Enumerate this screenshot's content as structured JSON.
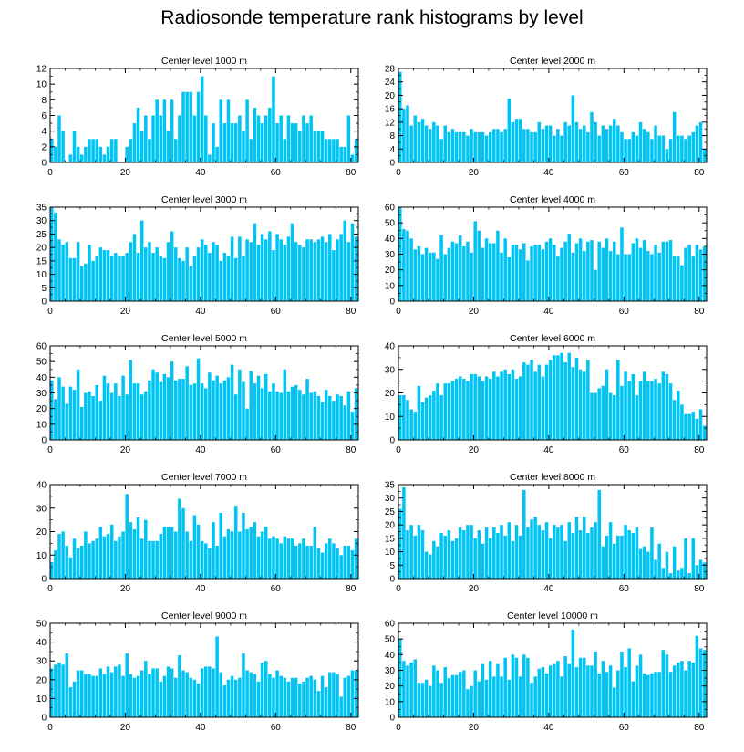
{
  "title": "Radiosonde temperature rank histograms by level",
  "colors": {
    "bar": "#00c4f4",
    "bar_edge": "#ffffff",
    "axis": "#000000"
  },
  "chart_data": [
    {
      "type": "bar",
      "title": "Center level 1000 m",
      "xlim": [
        0,
        82
      ],
      "ylim": [
        0,
        12
      ],
      "xticks": [
        0,
        20,
        40,
        60,
        80
      ],
      "yticks": [
        0,
        2,
        4,
        6,
        8,
        10,
        12
      ],
      "values": [
        3,
        2,
        6,
        4,
        0,
        1,
        4,
        2,
        1,
        2,
        3,
        3,
        3,
        2,
        1,
        2,
        3,
        3,
        0,
        0,
        2,
        3,
        5,
        7,
        4,
        6,
        3,
        6,
        8,
        6,
        8,
        4,
        8,
        3,
        6,
        9,
        9,
        9,
        6,
        9,
        11,
        6,
        1,
        5,
        2,
        8,
        5,
        8,
        5,
        5,
        6,
        4,
        8,
        3,
        7,
        6,
        5,
        6,
        7,
        11,
        5,
        6,
        3,
        6,
        5,
        5,
        4,
        6,
        5,
        6,
        4,
        4,
        4,
        3,
        3,
        3,
        3,
        2,
        2,
        6,
        1,
        3
      ]
    },
    {
      "type": "bar",
      "title": "Center level 2000 m",
      "xlim": [
        0,
        82
      ],
      "ylim": [
        0,
        28
      ],
      "xticks": [
        0,
        20,
        40,
        60,
        80
      ],
      "yticks": [
        0,
        4,
        8,
        12,
        16,
        20,
        24,
        28
      ],
      "values": [
        27,
        16,
        17,
        11,
        14,
        12,
        13,
        11,
        10,
        12,
        11,
        7,
        11,
        9,
        10,
        9,
        9,
        9,
        8,
        10,
        9,
        9,
        9,
        8,
        9,
        10,
        10,
        9,
        10,
        19,
        12,
        13,
        13,
        10,
        10,
        9,
        9,
        12,
        10,
        11,
        11,
        8,
        10,
        8,
        12,
        11,
        20,
        12,
        10,
        11,
        9,
        15,
        12,
        8,
        11,
        10,
        11,
        13,
        11,
        9,
        7,
        7,
        9,
        8,
        12,
        10,
        9,
        7,
        11,
        8,
        8,
        4,
        7,
        15,
        8,
        8,
        7,
        8,
        9,
        11,
        12,
        4
      ]
    },
    {
      "type": "bar",
      "title": "Center level 3000 m",
      "xlim": [
        0,
        82
      ],
      "ylim": [
        0,
        35
      ],
      "xticks": [
        0,
        20,
        40,
        60,
        80
      ],
      "yticks": [
        0,
        5,
        10,
        15,
        20,
        25,
        30,
        35
      ],
      "values": [
        35,
        33,
        23,
        21,
        22,
        16,
        16,
        22,
        13,
        14,
        21,
        15,
        17,
        20,
        19,
        19,
        17,
        18,
        17,
        17,
        18,
        22,
        25,
        18,
        30,
        20,
        22,
        18,
        20,
        17,
        16,
        22,
        26,
        20,
        16,
        15,
        20,
        13,
        17,
        20,
        23,
        21,
        18,
        22,
        21,
        15,
        18,
        17,
        24,
        16,
        24,
        17,
        23,
        22,
        29,
        21,
        25,
        23,
        26,
        19,
        25,
        23,
        21,
        24,
        29,
        22,
        21,
        20,
        23,
        23,
        22,
        23,
        24,
        22,
        25,
        19,
        23,
        25,
        30,
        22,
        29,
        24
      ]
    },
    {
      "type": "bar",
      "title": "Center level 4000 m",
      "xlim": [
        0,
        82
      ],
      "ylim": [
        0,
        60
      ],
      "xticks": [
        0,
        20,
        40,
        60,
        80
      ],
      "yticks": [
        0,
        10,
        20,
        30,
        40,
        50,
        60
      ],
      "values": [
        60,
        46,
        45,
        40,
        33,
        35,
        30,
        34,
        31,
        31,
        27,
        42,
        30,
        34,
        38,
        37,
        42,
        35,
        38,
        31,
        51,
        45,
        34,
        40,
        37,
        37,
        45,
        31,
        40,
        28,
        36,
        36,
        33,
        37,
        26,
        35,
        36,
        36,
        33,
        38,
        40,
        36,
        29,
        34,
        38,
        43,
        31,
        37,
        40,
        32,
        38,
        39,
        20,
        38,
        34,
        40,
        32,
        38,
        30,
        47,
        30,
        30,
        37,
        40,
        34,
        39,
        32,
        30,
        36,
        31,
        38,
        38,
        39,
        29,
        29,
        23,
        34,
        36,
        29,
        36,
        33,
        35
      ]
    },
    {
      "type": "bar",
      "title": "Center level 5000 m",
      "xlim": [
        0,
        82
      ],
      "ylim": [
        0,
        60
      ],
      "xticks": [
        0,
        20,
        40,
        60,
        80
      ],
      "yticks": [
        0,
        10,
        20,
        30,
        40,
        50,
        60
      ],
      "values": [
        38,
        26,
        40,
        34,
        23,
        34,
        32,
        45,
        21,
        30,
        31,
        28,
        35,
        25,
        41,
        36,
        30,
        36,
        28,
        41,
        29,
        51,
        36,
        36,
        29,
        31,
        38,
        45,
        43,
        37,
        42,
        40,
        50,
        38,
        39,
        39,
        47,
        35,
        36,
        52,
        36,
        33,
        43,
        38,
        41,
        36,
        38,
        40,
        48,
        29,
        45,
        37,
        20,
        44,
        36,
        41,
        33,
        42,
        31,
        36,
        31,
        30,
        45,
        31,
        34,
        35,
        32,
        29,
        39,
        30,
        31,
        28,
        24,
        32,
        28,
        25,
        29,
        28,
        22,
        31,
        18,
        33
      ]
    },
    {
      "type": "bar",
      "title": "Center level 6000 m",
      "xlim": [
        0,
        82
      ],
      "ylim": [
        0,
        40
      ],
      "xticks": [
        0,
        20,
        40,
        60,
        80
      ],
      "yticks": [
        0,
        10,
        20,
        30,
        40
      ],
      "values": [
        19,
        19,
        17,
        13,
        12,
        23,
        16,
        18,
        19,
        21,
        24,
        19,
        24,
        24,
        25,
        26,
        27,
        26,
        25,
        28,
        28,
        27,
        25,
        27,
        26,
        29,
        27,
        29,
        30,
        28,
        30,
        26,
        27,
        33,
        32,
        34,
        29,
        32,
        27,
        32,
        34,
        36,
        36,
        37,
        33,
        37,
        31,
        35,
        30,
        29,
        34,
        20,
        20,
        22,
        23,
        30,
        20,
        19,
        34,
        23,
        29,
        25,
        28,
        19,
        25,
        29,
        25,
        25,
        26,
        24,
        29,
        28,
        24,
        17,
        21,
        15,
        11,
        11,
        12,
        9,
        13,
        6
      ]
    },
    {
      "type": "bar",
      "title": "Center level 7000 m",
      "xlim": [
        0,
        82
      ],
      "ylim": [
        0,
        40
      ],
      "xticks": [
        0,
        20,
        40,
        60,
        80
      ],
      "yticks": [
        0,
        10,
        20,
        30,
        40
      ],
      "values": [
        7,
        12,
        19,
        20,
        14,
        9,
        17,
        13,
        14,
        20,
        15,
        16,
        17,
        22,
        18,
        19,
        23,
        16,
        18,
        20,
        36,
        24,
        21,
        26,
        17,
        25,
        16,
        16,
        16,
        19,
        22,
        22,
        22,
        20,
        34,
        30,
        20,
        16,
        27,
        23,
        16,
        15,
        13,
        24,
        14,
        28,
        18,
        21,
        20,
        31,
        20,
        28,
        21,
        22,
        24,
        18,
        20,
        22,
        17,
        18,
        17,
        15,
        18,
        17,
        17,
        14,
        15,
        17,
        14,
        14,
        22,
        13,
        11,
        15,
        17,
        15,
        13,
        10,
        14,
        14,
        12,
        17
      ]
    },
    {
      "type": "bar",
      "title": "Center level 8000 m",
      "xlim": [
        0,
        82
      ],
      "ylim": [
        0,
        35
      ],
      "xticks": [
        0,
        20,
        40,
        60,
        80
      ],
      "yticks": [
        0,
        5,
        10,
        15,
        20,
        25,
        30,
        35
      ],
      "values": [
        26,
        34,
        18,
        20,
        16,
        20,
        18,
        10,
        9,
        14,
        12,
        17,
        16,
        18,
        14,
        15,
        19,
        18,
        20,
        20,
        15,
        18,
        13,
        19,
        15,
        19,
        17,
        20,
        16,
        21,
        14,
        20,
        16,
        33,
        19,
        22,
        23,
        20,
        18,
        21,
        15,
        20,
        19,
        20,
        14,
        21,
        17,
        23,
        18,
        23,
        17,
        19,
        21,
        33,
        12,
        16,
        21,
        13,
        16,
        16,
        20,
        18,
        17,
        19,
        11,
        12,
        10,
        19,
        7,
        13,
        4,
        10,
        2,
        12,
        3,
        4,
        15,
        2,
        15,
        5,
        7,
        6
      ]
    },
    {
      "type": "bar",
      "title": "Center level 9000 m",
      "xlim": [
        0,
        82
      ],
      "ylim": [
        0,
        50
      ],
      "xticks": [
        0,
        20,
        40,
        60,
        80
      ],
      "yticks": [
        0,
        10,
        20,
        30,
        40,
        50
      ],
      "values": [
        26,
        28,
        29,
        28,
        34,
        16,
        19,
        25,
        25,
        23,
        23,
        22,
        22,
        26,
        23,
        27,
        24,
        27,
        28,
        22,
        34,
        23,
        21,
        22,
        25,
        30,
        23,
        26,
        26,
        19,
        22,
        27,
        26,
        21,
        33,
        25,
        24,
        21,
        20,
        18,
        26,
        27,
        27,
        26,
        43,
        24,
        17,
        20,
        22,
        20,
        21,
        34,
        25,
        24,
        23,
        19,
        29,
        30,
        23,
        21,
        25,
        22,
        21,
        19,
        21,
        21,
        18,
        19,
        21,
        22,
        20,
        14,
        22,
        16,
        24,
        24,
        23,
        11,
        21,
        22,
        25,
        25
      ]
    },
    {
      "type": "bar",
      "title": "Center level 10000 m",
      "xlim": [
        0,
        82
      ],
      "ylim": [
        0,
        60
      ],
      "xticks": [
        0,
        20,
        40,
        60,
        80
      ],
      "yticks": [
        0,
        10,
        20,
        30,
        40,
        50,
        60
      ],
      "values": [
        50,
        36,
        33,
        35,
        37,
        22,
        22,
        24,
        20,
        33,
        30,
        22,
        32,
        25,
        27,
        27,
        29,
        30,
        18,
        20,
        30,
        23,
        34,
        24,
        36,
        26,
        34,
        26,
        38,
        24,
        40,
        38,
        26,
        40,
        38,
        22,
        26,
        31,
        32,
        28,
        33,
        34,
        36,
        26,
        39,
        34,
        56,
        32,
        38,
        38,
        33,
        33,
        42,
        28,
        36,
        29,
        33,
        19,
        30,
        42,
        32,
        44,
        23,
        33,
        40,
        28,
        27,
        28,
        29,
        29,
        43,
        40,
        29,
        33,
        35,
        36,
        30,
        36,
        35,
        52,
        44,
        43
      ]
    }
  ]
}
